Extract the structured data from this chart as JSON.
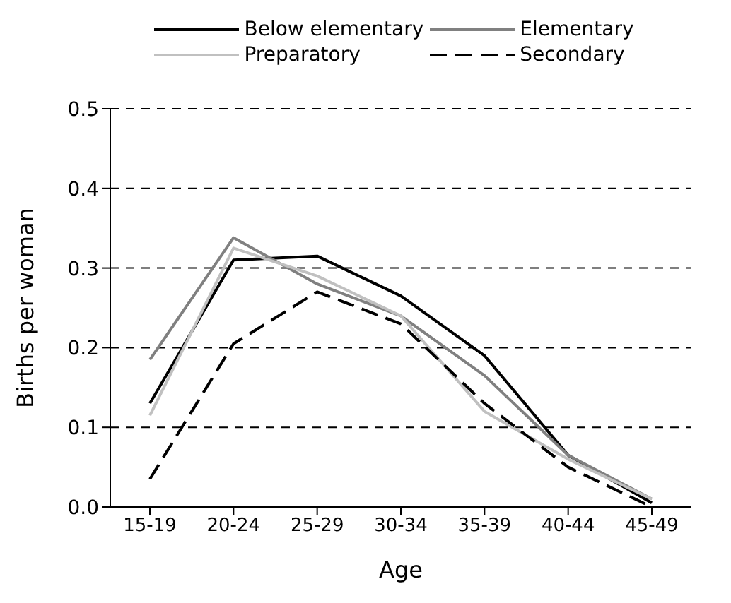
{
  "chart_data": {
    "type": "line",
    "xlabel": "Age",
    "ylabel": "Births per woman",
    "categories": [
      "15-19",
      "20-24",
      "25-29",
      "30-34",
      "35-39",
      "40-44",
      "45-49"
    ],
    "series": [
      {
        "name": "Below elementary",
        "color": "#000000",
        "line_style": "solid",
        "values": [
          0.13,
          0.31,
          0.315,
          0.265,
          0.19,
          0.065,
          0.005
        ]
      },
      {
        "name": "Elementary",
        "color": "#808080",
        "line_style": "solid",
        "values": [
          0.185,
          0.338,
          0.28,
          0.24,
          0.165,
          0.065,
          0.01
        ]
      },
      {
        "name": "Preparatory",
        "color": "#c0c0c0",
        "line_style": "solid",
        "values": [
          0.115,
          0.325,
          0.29,
          0.24,
          0.12,
          0.06,
          0.01
        ]
      },
      {
        "name": "Secondary",
        "color": "#000000",
        "line_style": "dashed",
        "values": [
          0.035,
          0.205,
          0.27,
          0.23,
          0.13,
          0.05,
          0.0
        ]
      }
    ],
    "ylim": [
      0,
      0.5
    ],
    "yticks": [
      {
        "value": 0,
        "label": "0.0"
      },
      {
        "value": 0.1,
        "label": "0.1"
      },
      {
        "value": 0.2,
        "label": "0.2"
      },
      {
        "value": 0.3,
        "label": "0.3"
      },
      {
        "value": 0.4,
        "label": "0.4"
      },
      {
        "value": 0.5,
        "label": "0.5"
      }
    ],
    "grid": "y",
    "legend": "top",
    "marker": "none"
  }
}
